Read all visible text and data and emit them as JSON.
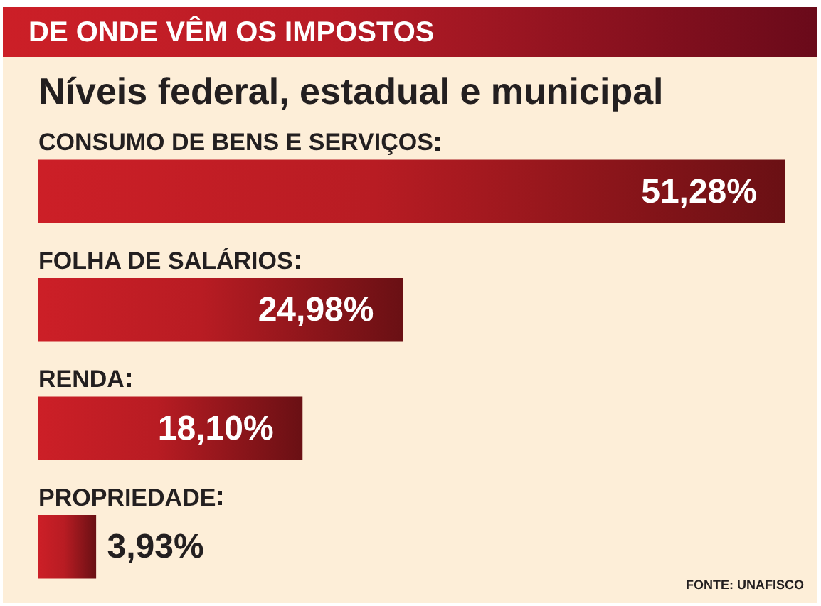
{
  "chart_data": {
    "type": "bar",
    "orientation": "horizontal",
    "title": "DE ONDE VÊM OS IMPOSTOS",
    "subtitle": "Níveis federal, estadual e municipal",
    "categories": [
      "CONSUMO DE BENS E SERVIÇOS",
      "FOLHA DE SALÁRIOS",
      "RENDA",
      "PROPRIEDADE"
    ],
    "values": [
      51.28,
      24.98,
      18.1,
      3.93
    ],
    "value_labels": [
      "51,28%",
      "24,98%",
      "18,10%",
      "3,93%"
    ],
    "color": "#cc1f27",
    "annotations": [
      "FONTE: UNAFISCO"
    ]
  }
}
